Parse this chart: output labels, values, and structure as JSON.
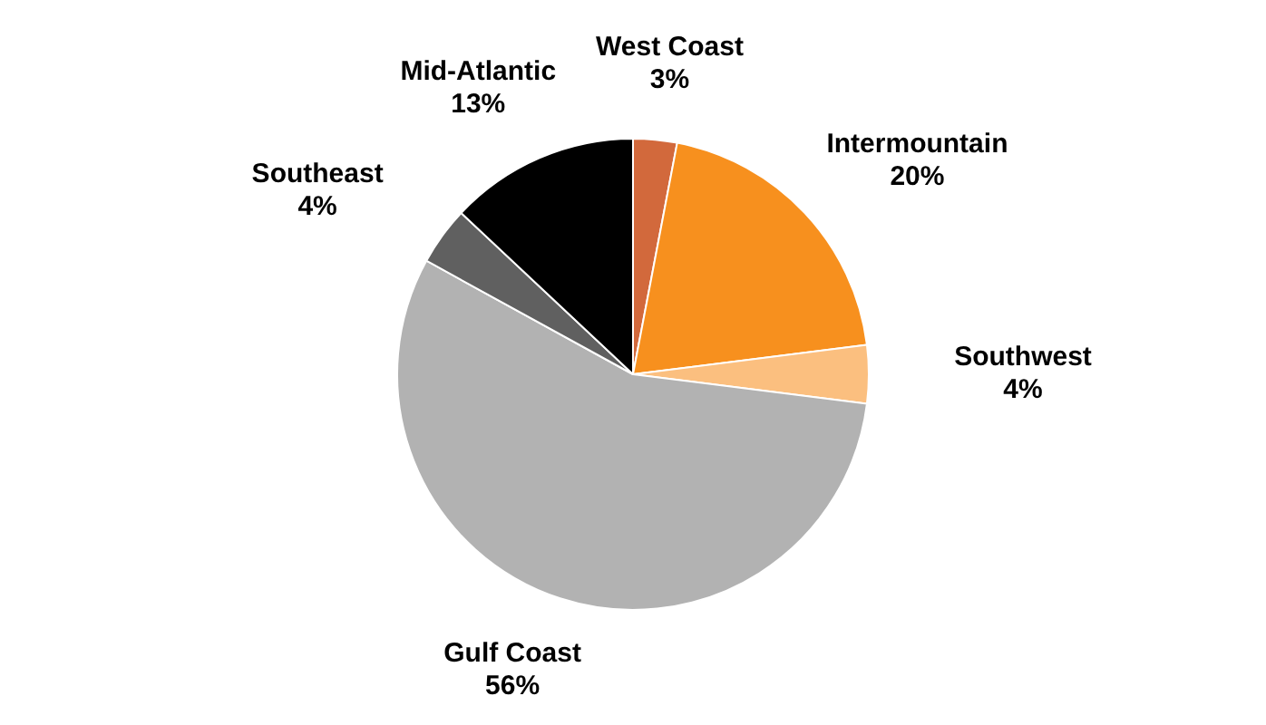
{
  "chart_data": {
    "type": "pie",
    "categories": [
      "West Coast",
      "Intermountain",
      "Southwest",
      "Gulf Coast",
      "Southeast",
      "Mid-Atlantic"
    ],
    "values": [
      3,
      20,
      4,
      56,
      4,
      13
    ],
    "value_labels": [
      "3%",
      "20%",
      "4%",
      "56%",
      "4%",
      "13%"
    ],
    "colors": [
      "#d2693c",
      "#f7901e",
      "#fbbf7f",
      "#b2b2b2",
      "#606060",
      "#000000"
    ],
    "legend": false
  }
}
